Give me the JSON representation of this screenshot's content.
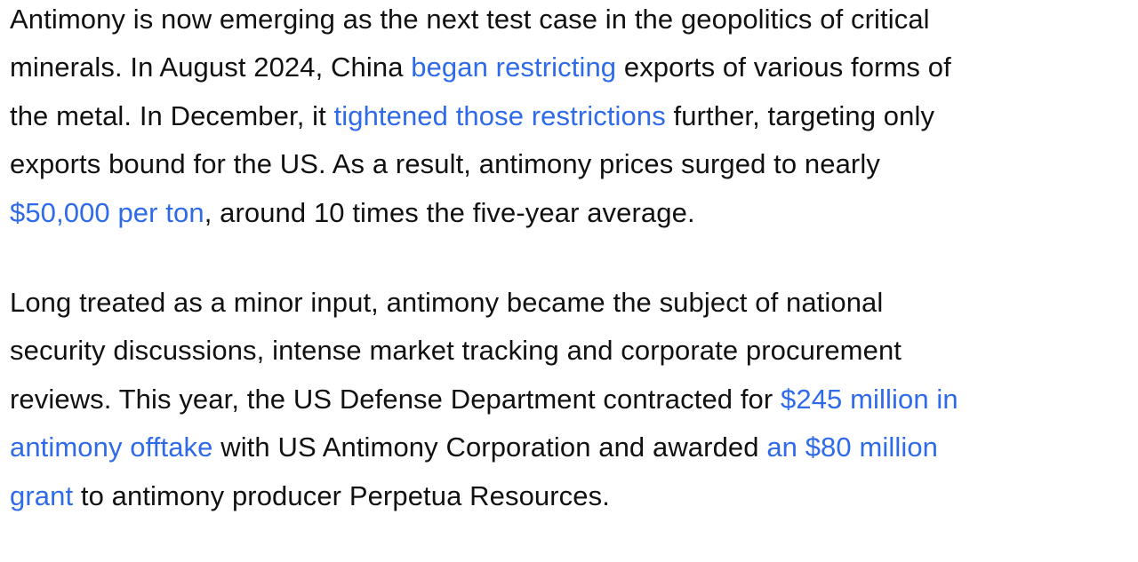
{
  "link_color": "#2f6be8",
  "paragraphs": [
    {
      "lines": [
        [
          {
            "text": "Antimony is now emerging as the next test case in the geopolitics of critical"
          }
        ],
        [
          {
            "text": "minerals. In August 2024, China "
          },
          {
            "text": "began restricting",
            "link": true
          },
          {
            "text": " exports of various forms of"
          }
        ],
        [
          {
            "text": "the metal. In December, it "
          },
          {
            "text": "tightened those restrictions",
            "link": true
          },
          {
            "text": " further, targeting only"
          }
        ],
        [
          {
            "text": "exports bound for the US. As a result, antimony prices surged to nearly"
          }
        ],
        [
          {
            "text": "$50,000 per ton",
            "link": true
          },
          {
            "text": ", around 10 times the five-year average."
          }
        ]
      ]
    },
    {
      "lines": [
        [
          {
            "text": "Long treated as a minor input, antimony became the subject of national"
          }
        ],
        [
          {
            "text": "security discussions, intense market tracking and corporate procurement"
          }
        ],
        [
          {
            "text": "reviews. This year, the US Defense Department contracted for "
          },
          {
            "text": "$245 million in",
            "link": true
          }
        ],
        [
          {
            "text": "antimony offtake",
            "link": true
          },
          {
            "text": " with US Antimony Corporation and awarded "
          },
          {
            "text": "an $80 million",
            "link": true
          }
        ],
        [
          {
            "text": "grant",
            "link": true
          },
          {
            "text": " to antimony producer Perpetua Resources."
          }
        ]
      ]
    }
  ]
}
